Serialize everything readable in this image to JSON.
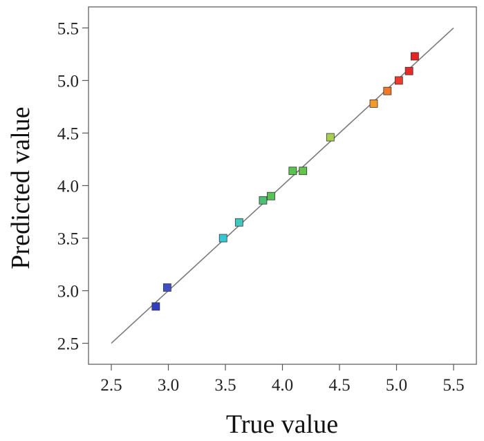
{
  "chart_data": {
    "type": "scatter",
    "xlabel": "True value",
    "ylabel": "Predicted value",
    "xlim": [
      2.3,
      5.7
    ],
    "ylim": [
      2.3,
      5.7
    ],
    "xticks": [
      "2.5",
      "3.0",
      "3.5",
      "4.0",
      "4.5",
      "5.0",
      "5.5"
    ],
    "yticks": [
      "2.5",
      "3.0",
      "3.5",
      "4.0",
      "4.5",
      "5.0",
      "5.5"
    ],
    "reference_line": {
      "x": [
        2.5,
        5.5
      ],
      "y": [
        2.5,
        5.5
      ],
      "color": "#7a7a7a"
    },
    "grid": false,
    "legend": "none",
    "points": [
      {
        "x": 2.89,
        "y": 2.85,
        "color": "#2f3fbf"
      },
      {
        "x": 2.99,
        "y": 3.03,
        "color": "#3f4fc8"
      },
      {
        "x": 3.48,
        "y": 3.5,
        "color": "#37c8d8"
      },
      {
        "x": 3.62,
        "y": 3.65,
        "color": "#40c8c0"
      },
      {
        "x": 3.83,
        "y": 3.86,
        "color": "#4cc070"
      },
      {
        "x": 3.9,
        "y": 3.9,
        "color": "#55c455"
      },
      {
        "x": 4.09,
        "y": 4.14,
        "color": "#5ac24e"
      },
      {
        "x": 4.18,
        "y": 4.14,
        "color": "#62c44a"
      },
      {
        "x": 4.42,
        "y": 4.46,
        "color": "#a8d050"
      },
      {
        "x": 4.8,
        "y": 4.78,
        "color": "#f39a2a"
      },
      {
        "x": 4.92,
        "y": 4.9,
        "color": "#f07a28"
      },
      {
        "x": 5.02,
        "y": 5.0,
        "color": "#ee3a2a"
      },
      {
        "x": 5.11,
        "y": 5.09,
        "color": "#e82a2a"
      },
      {
        "x": 5.16,
        "y": 5.23,
        "color": "#e82222"
      }
    ]
  }
}
